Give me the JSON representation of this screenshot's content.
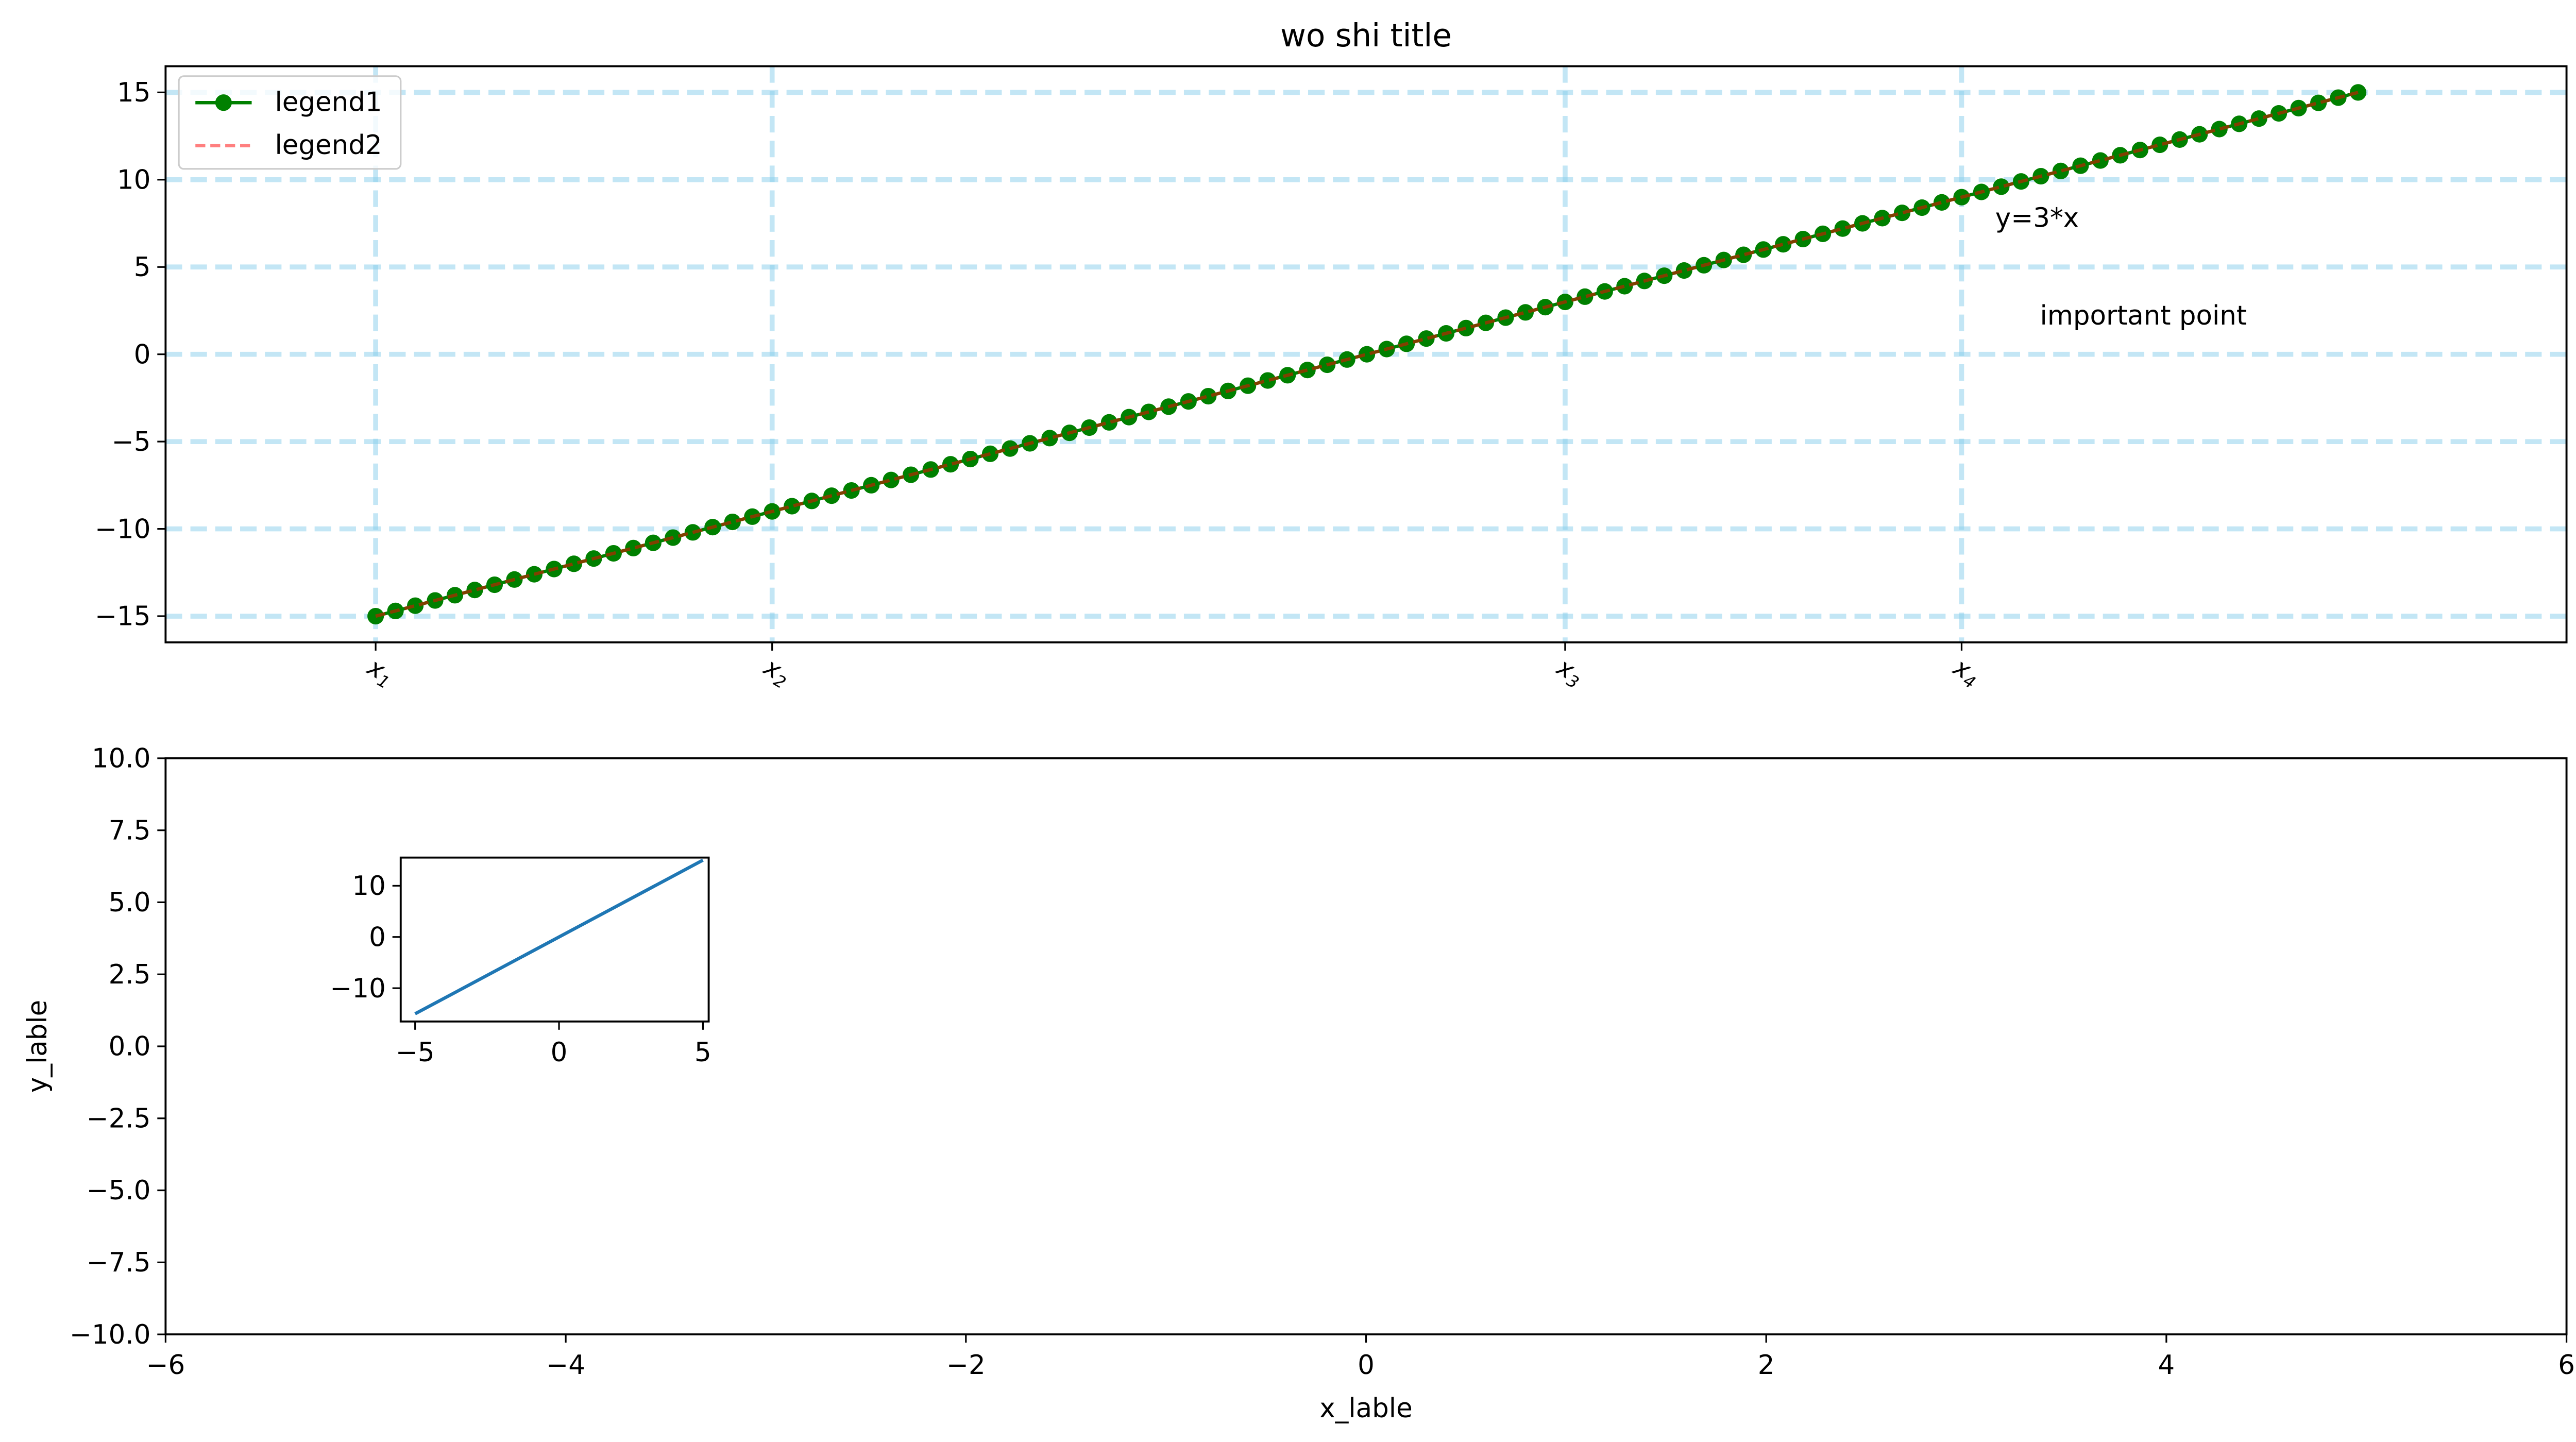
{
  "chart_data": [
    {
      "type": "line",
      "title": "wo shi title",
      "x_range": [
        -5.5,
        5.5
      ],
      "xticks": [
        {
          "x": -5,
          "label": "x1"
        },
        {
          "x": -3,
          "label": "x2"
        },
        {
          "x": 1,
          "label": "x3"
        },
        {
          "x": 3,
          "label": "x4"
        }
      ],
      "ylim": [
        -16.5,
        16.5
      ],
      "yticks": [
        -15,
        -10,
        -5,
        0,
        5,
        10,
        15
      ],
      "ytick_labels": [
        "−15",
        "−10",
        "−5",
        "0",
        "5",
        "10",
        "15"
      ],
      "grid": true,
      "grid_color": "#87ceeb",
      "legend_position": "upper-left",
      "series": [
        {
          "name": "legend1",
          "x_start": -5,
          "x_end": 5,
          "points": 101,
          "slope": 3,
          "intercept": 0,
          "color": "#008000",
          "marker": "circle",
          "linestyle": "solid"
        },
        {
          "name": "legend2",
          "x_start": -5,
          "x_end": 5,
          "points": 101,
          "slope": 3,
          "intercept": 0,
          "color": "#ff0000",
          "opacity": 0.5,
          "linestyle": "dashed"
        }
      ],
      "annotations": [
        {
          "text": "y=3*x",
          "x": 2.8,
          "y": 7
        },
        {
          "text": "important point",
          "x": 3.0,
          "y": 1.5
        }
      ]
    },
    {
      "type": "line",
      "xlabel": "x_lable",
      "ylabel": "y_lable",
      "xlim": [
        -6,
        6
      ],
      "ylim": [
        -10,
        10
      ],
      "xticks": [
        -6,
        -4,
        -2,
        0,
        2,
        4,
        6
      ],
      "xtick_labels": [
        "−6",
        "−4",
        "−2",
        "0",
        "2",
        "4",
        "6"
      ],
      "yticks": [
        -10,
        -7.5,
        -5,
        -2.5,
        0,
        2.5,
        5,
        7.5,
        10
      ],
      "ytick_labels": [
        "−10.0",
        "−7.5",
        "−5.0",
        "−2.5",
        "0.0",
        "2.5",
        "5.0",
        "7.5",
        "10.0"
      ],
      "series": []
    },
    {
      "type": "line",
      "inset": true,
      "xlim": [
        -5.5,
        5.2
      ],
      "ylim": [
        -16.5,
        15.5
      ],
      "xticks": [
        -5,
        0,
        5
      ],
      "xtick_labels": [
        "−5",
        "0",
        "5"
      ],
      "yticks": [
        -10,
        0,
        10
      ],
      "ytick_labels": [
        "−10",
        "0",
        "10"
      ],
      "series": [
        {
          "x": [
            -5,
            5
          ],
          "y": [
            -15,
            15
          ],
          "color": "#1f77b4",
          "linestyle": "solid"
        }
      ]
    }
  ]
}
